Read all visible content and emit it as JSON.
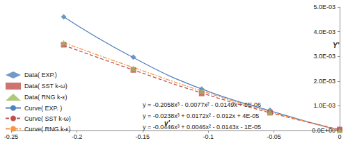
{
  "chart_data": {
    "type": "scatter",
    "x_label": "v'",
    "y_label": "Y'",
    "x": [
      -0.21,
      -0.157,
      -0.105,
      -0.053,
      0
    ],
    "series": [
      {
        "name": "Data( EXP.)",
        "type": "scatter",
        "marker": "diamond",
        "color": "#4f81bd",
        "values": [
          0.0046,
          0.00297,
          0.00168,
          0.00082,
          4e-05
        ]
      },
      {
        "name": "Data( SST k-ω)",
        "type": "scatter",
        "marker": "square",
        "color": "#c0504d",
        "values": [
          0.00347,
          0.00245,
          0.0015,
          0.00072,
          4e-05
        ]
      },
      {
        "name": "Data( RNG k-ε)",
        "type": "scatter",
        "marker": "triangle",
        "color": "#9bbb59",
        "values": [
          0.00355,
          0.00252,
          0.0016,
          0.00075,
          0.0
        ]
      },
      {
        "name": "Curve( EXP. )",
        "type": "line",
        "line_style": "solid",
        "color": "#4f81bd",
        "values": [
          0.0046,
          0.00295,
          0.00168,
          0.0008,
          0.0
        ]
      },
      {
        "name": "Curve( SST k-ω)",
        "type": "line",
        "line_style": "dashed",
        "color": "#c0504d",
        "values": [
          0.00345,
          0.00245,
          0.00152,
          0.00072,
          4e-05
        ]
      },
      {
        "name": "Curve( RNG k-ε)",
        "type": "line",
        "line_style": "dashdot",
        "color": "#f79646",
        "values": [
          0.00355,
          0.00255,
          0.0016,
          0.00076,
          0.0
        ]
      }
    ],
    "annotations": [
      "y = -0.2058x³ - 0.0077x² - 0.0149x + 5E-06",
      "y = -0.0238x³ + 0.0172x² - 0.012x + 4E-05",
      "y = -0.0446x³ + 0.0046x² - 0.0143x - 1E-05"
    ],
    "xlim": [
      -0.25,
      0
    ],
    "xticks": [
      -0.25,
      -0.2,
      -0.15,
      -0.1,
      -0.05,
      0
    ],
    "ylim": [
      0,
      0.005
    ],
    "yticks": [
      {
        "value": 0,
        "label": "0.0E+00"
      },
      {
        "value": 0.001,
        "label": "1.0E-03"
      },
      {
        "value": 0.002,
        "label": "2.0E-03"
      },
      {
        "value": 0.003,
        "label": "3.0E-03"
      },
      {
        "value": 0.004,
        "label": "4.0E-03"
      },
      {
        "value": 0.005,
        "label": "5.0E-03"
      }
    ],
    "grid": false,
    "legend": "left"
  }
}
